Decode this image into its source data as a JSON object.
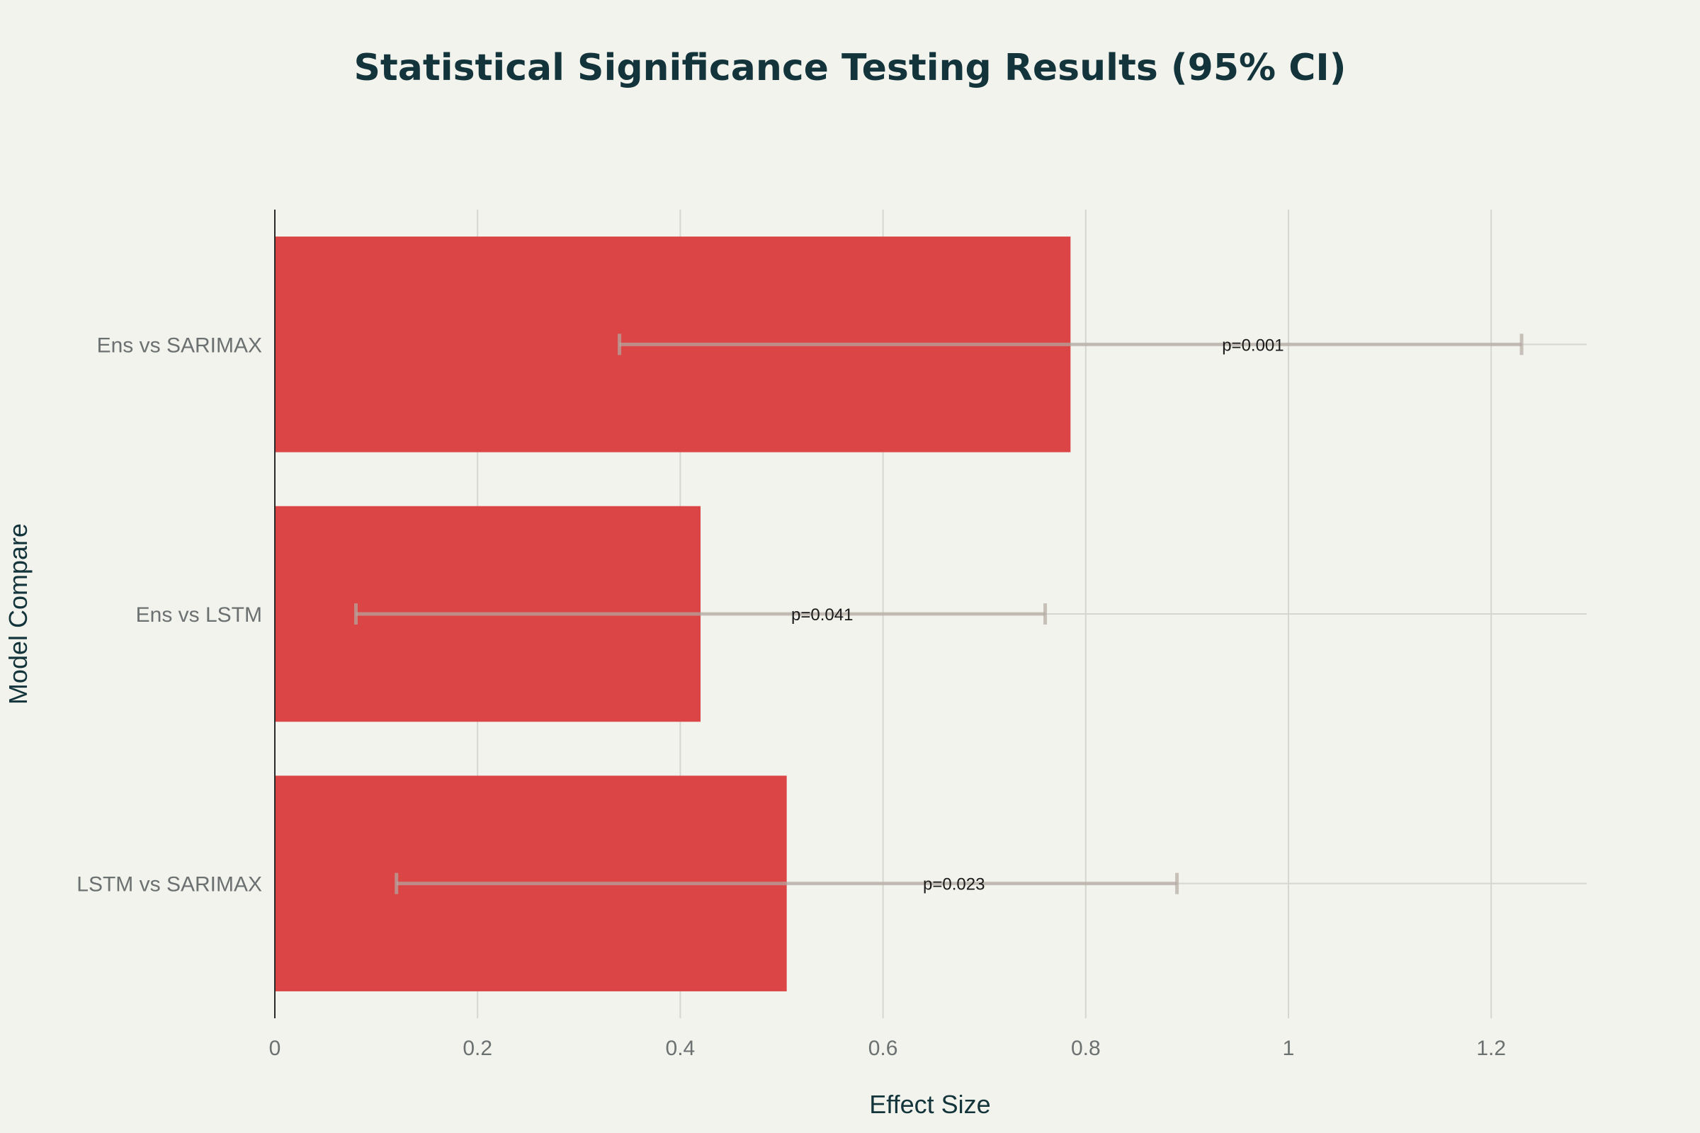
{
  "chart_data": {
    "type": "bar",
    "orientation": "horizontal",
    "title": "Statistical Significance Testing Results (95% CI)",
    "xlabel": "Effect Size",
    "ylabel": "Model Compare",
    "categories": [
      "Ens vs SARIMAX",
      "Ens vs LSTM",
      "LSTM vs SARIMAX"
    ],
    "values": [
      0.785,
      0.42,
      0.505
    ],
    "ci_lower": [
      0.34,
      0.08,
      0.12
    ],
    "ci_upper": [
      1.23,
      0.76,
      0.89
    ],
    "data_labels": [
      "p=0.001",
      "p=0.041",
      "p=0.023"
    ],
    "xlim": [
      0,
      1.3
    ],
    "xticks": [
      0,
      0.2,
      0.4,
      0.6,
      0.8,
      1,
      1.2
    ],
    "xtick_labels": [
      "0",
      "0.2",
      "0.4",
      "0.6",
      "0.8",
      "1",
      "1.2"
    ],
    "grid": true,
    "legend": "none",
    "colors": {
      "bar": "#db4545",
      "error_bar": "#b3a9a3",
      "grid": "#d6d6d0",
      "axis_line": "#2a2a2a",
      "background": "#f3f3ee",
      "title": "#13343b"
    }
  }
}
